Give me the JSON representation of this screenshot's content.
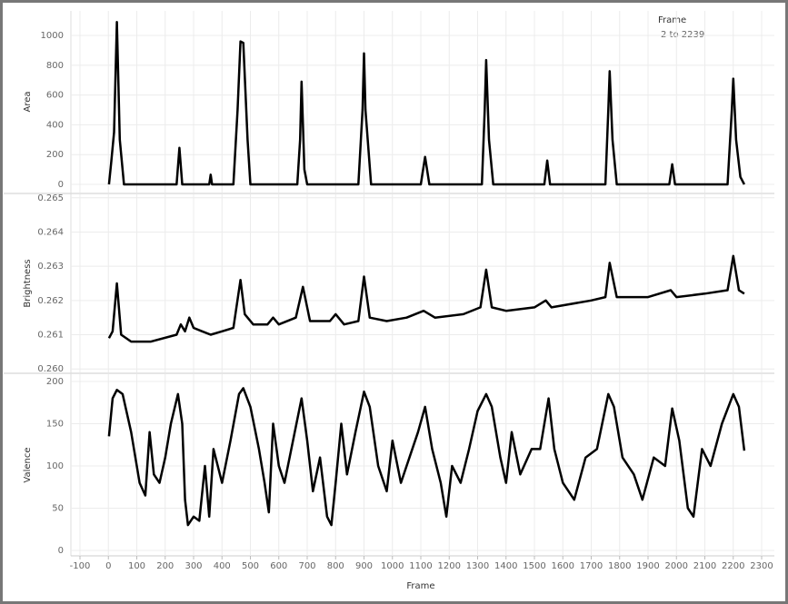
{
  "filter": {
    "title": "Frame",
    "range": "2 to 2239"
  },
  "chart_data": [
    {
      "type": "line",
      "y_label": "Area",
      "color": "#000000",
      "grid": true,
      "ylim": [
        -55,
        1165
      ],
      "yticks": [
        0,
        200,
        400,
        600,
        800,
        1000
      ],
      "x": [
        2,
        10,
        20,
        30,
        40,
        55,
        240,
        250,
        260,
        355,
        360,
        365,
        440,
        455,
        465,
        475,
        490,
        500,
        665,
        675,
        680,
        690,
        700,
        880,
        895,
        900,
        905,
        925,
        1100,
        1115,
        1130,
        1315,
        1325,
        1330,
        1340,
        1355,
        1535,
        1545,
        1555,
        1750,
        1760,
        1765,
        1775,
        1790,
        1975,
        1985,
        1995,
        2180,
        2195,
        2200,
        2210,
        2225,
        2239
      ],
      "values": [
        0,
        150,
        350,
        1090,
        300,
        0,
        0,
        245,
        0,
        0,
        65,
        0,
        0,
        500,
        960,
        950,
        300,
        0,
        0,
        300,
        690,
        100,
        0,
        0,
        500,
        880,
        500,
        0,
        0,
        185,
        0,
        0,
        500,
        835,
        300,
        0,
        0,
        160,
        0,
        0,
        500,
        760,
        300,
        0,
        0,
        135,
        0,
        0,
        500,
        710,
        300,
        50,
        0
      ]
    },
    {
      "type": "line",
      "y_label": "Brightness",
      "color": "#000000",
      "grid": true,
      "ylim": [
        0.2599,
        0.2651
      ],
      "yticks": [
        {
          "value": 0.26,
          "label": "0.260"
        },
        0.261,
        0.262,
        0.263,
        0.264,
        0.265
      ],
      "x": [
        2,
        15,
        30,
        45,
        80,
        150,
        240,
        255,
        270,
        285,
        300,
        330,
        360,
        400,
        440,
        465,
        480,
        510,
        560,
        580,
        600,
        660,
        685,
        710,
        780,
        800,
        830,
        880,
        900,
        920,
        980,
        1050,
        1110,
        1150,
        1250,
        1310,
        1330,
        1350,
        1400,
        1500,
        1540,
        1560,
        1700,
        1750,
        1765,
        1790,
        1900,
        1980,
        2000,
        2100,
        2180,
        2200,
        2220,
        2239
      ],
      "values": [
        0.2609,
        0.2611,
        0.2625,
        0.261,
        0.2608,
        0.2608,
        0.261,
        0.2613,
        0.2611,
        0.2615,
        0.2612,
        0.2611,
        0.261,
        0.2611,
        0.2612,
        0.2626,
        0.2616,
        0.2613,
        0.2613,
        0.2615,
        0.2613,
        0.2615,
        0.2624,
        0.2614,
        0.2614,
        0.2616,
        0.2613,
        0.2614,
        0.2627,
        0.2615,
        0.2614,
        0.2615,
        0.2617,
        0.2615,
        0.2616,
        0.2618,
        0.2629,
        0.2618,
        0.2617,
        0.2618,
        0.262,
        0.2618,
        0.262,
        0.2621,
        0.2631,
        0.2621,
        0.2621,
        0.2623,
        0.2621,
        0.2622,
        0.2623,
        0.2633,
        0.2623,
        0.2622
      ]
    },
    {
      "type": "line",
      "y_label": "Valence",
      "color": "#000000",
      "grid": true,
      "x_label": "Frame",
      "ylim": [
        -6.5,
        208.6
      ],
      "yticks": [
        0,
        50,
        100,
        150,
        200
      ],
      "xlim": [
        -100,
        2300
      ],
      "xticks": [
        -100,
        0,
        100,
        200,
        300,
        400,
        500,
        600,
        700,
        800,
        900,
        1000,
        1100,
        1200,
        1300,
        1400,
        1500,
        1600,
        1700,
        1800,
        1900,
        2000,
        2100,
        2200,
        2300
      ],
      "x": [
        2,
        15,
        30,
        50,
        80,
        110,
        130,
        145,
        160,
        180,
        200,
        220,
        245,
        260,
        270,
        280,
        300,
        320,
        340,
        355,
        370,
        400,
        430,
        460,
        475,
        500,
        530,
        550,
        565,
        580,
        600,
        620,
        650,
        680,
        700,
        720,
        745,
        770,
        785,
        800,
        820,
        840,
        870,
        900,
        920,
        950,
        980,
        1000,
        1030,
        1060,
        1090,
        1115,
        1140,
        1170,
        1190,
        1210,
        1240,
        1270,
        1300,
        1330,
        1350,
        1380,
        1400,
        1420,
        1450,
        1490,
        1520,
        1550,
        1570,
        1600,
        1640,
        1680,
        1720,
        1760,
        1780,
        1810,
        1850,
        1880,
        1920,
        1960,
        1985,
        2010,
        2040,
        2060,
        2090,
        2120,
        2160,
        2200,
        2220,
        2239
      ],
      "values": [
        135,
        180,
        190,
        185,
        140,
        80,
        65,
        140,
        90,
        80,
        110,
        150,
        185,
        150,
        60,
        30,
        40,
        35,
        100,
        40,
        120,
        80,
        130,
        185,
        192,
        170,
        120,
        80,
        45,
        150,
        100,
        80,
        130,
        180,
        130,
        70,
        110,
        40,
        30,
        80,
        150,
        90,
        140,
        188,
        170,
        100,
        70,
        130,
        80,
        110,
        140,
        170,
        120,
        80,
        40,
        100,
        80,
        120,
        165,
        185,
        170,
        110,
        80,
        140,
        90,
        120,
        120,
        180,
        120,
        80,
        60,
        110,
        120,
        185,
        170,
        110,
        90,
        60,
        110,
        100,
        168,
        130,
        50,
        40,
        120,
        100,
        150,
        185,
        170,
        118
      ]
    }
  ]
}
